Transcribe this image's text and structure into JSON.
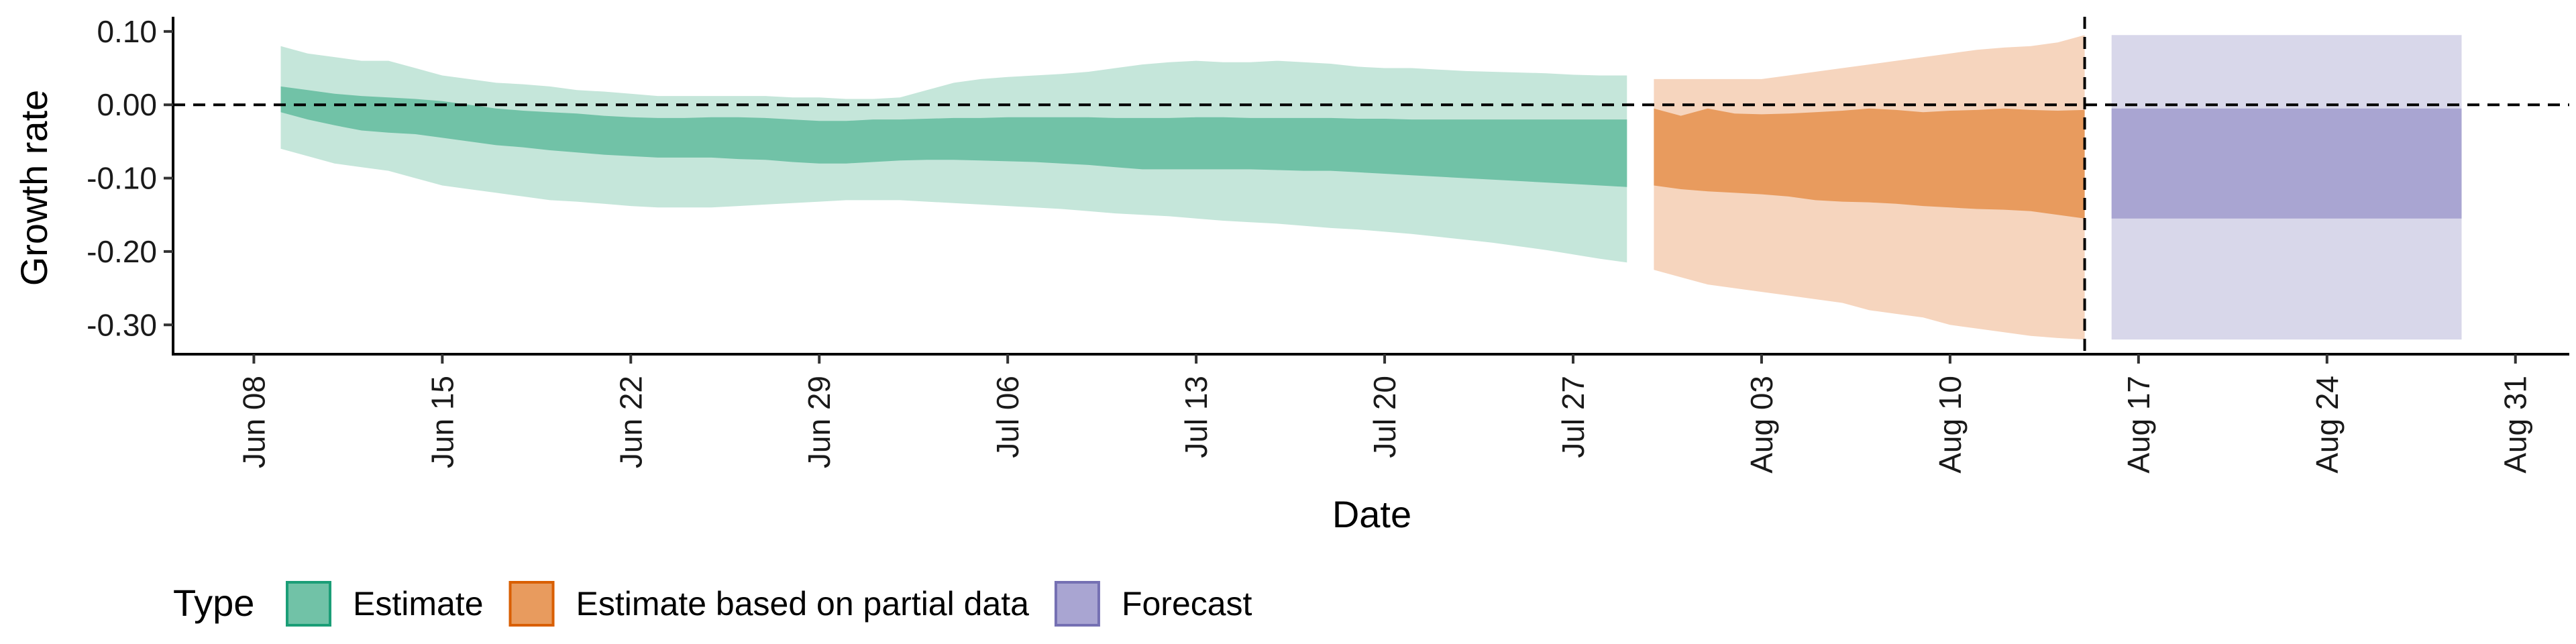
{
  "chart_data": {
    "type": "area",
    "title": "",
    "xlabel": "Date",
    "ylabel": "Growth rate",
    "x_ticks": [
      "Jun 08",
      "Jun 15",
      "Jun 22",
      "Jun 29",
      "Jul 06",
      "Jul 13",
      "Jul 20",
      "Jul 27",
      "Aug 03",
      "Aug 10",
      "Aug 17",
      "Aug 24",
      "Aug 31"
    ],
    "y_ticks": [
      "0.10",
      "0.00",
      "-0.10",
      "-0.20",
      "-0.30"
    ],
    "y_tick_values": [
      0.1,
      0.0,
      -0.1,
      -0.2,
      -0.3
    ],
    "xlim": [
      "2020-06-05",
      "2020-09-02"
    ],
    "ylim": [
      -0.34,
      0.12
    ],
    "grid": false,
    "reference_lines": {
      "horizontal_y": 0.0,
      "vertical_date": "2020-08-15"
    },
    "legend": {
      "title": "Type",
      "position": "bottom-left",
      "items": [
        {
          "label": "Estimate",
          "fill": "#71c2a7",
          "border": "#1b9e77"
        },
        {
          "label": "Estimate based on partial data",
          "fill": "#e89b5e",
          "border": "#d95f02"
        },
        {
          "label": "Forecast",
          "fill": "#a9a5d2",
          "border": "#7570b3"
        }
      ]
    },
    "series": [
      {
        "name": "Estimate",
        "inner_color": "#71c2a7",
        "outer_color": "#c5e6da",
        "dates": [
          "2020-06-09",
          "2020-06-10",
          "2020-06-11",
          "2020-06-12",
          "2020-06-13",
          "2020-06-14",
          "2020-06-15",
          "2020-06-16",
          "2020-06-17",
          "2020-06-18",
          "2020-06-19",
          "2020-06-20",
          "2020-06-21",
          "2020-06-22",
          "2020-06-23",
          "2020-06-24",
          "2020-06-25",
          "2020-06-26",
          "2020-06-27",
          "2020-06-28",
          "2020-06-29",
          "2020-06-30",
          "2020-07-01",
          "2020-07-02",
          "2020-07-03",
          "2020-07-04",
          "2020-07-05",
          "2020-07-06",
          "2020-07-07",
          "2020-07-08",
          "2020-07-09",
          "2020-07-10",
          "2020-07-11",
          "2020-07-12",
          "2020-07-13",
          "2020-07-14",
          "2020-07-15",
          "2020-07-16",
          "2020-07-17",
          "2020-07-18",
          "2020-07-19",
          "2020-07-20",
          "2020-07-21",
          "2020-07-22",
          "2020-07-23",
          "2020-07-24",
          "2020-07-25",
          "2020-07-26",
          "2020-07-27",
          "2020-07-28",
          "2020-07-29"
        ],
        "upper90": [
          0.08,
          0.07,
          0.065,
          0.06,
          0.06,
          0.05,
          0.04,
          0.035,
          0.03,
          0.028,
          0.025,
          0.02,
          0.018,
          0.015,
          0.012,
          0.012,
          0.012,
          0.012,
          0.012,
          0.01,
          0.01,
          0.008,
          0.008,
          0.01,
          0.02,
          0.03,
          0.035,
          0.038,
          0.04,
          0.042,
          0.045,
          0.05,
          0.055,
          0.058,
          0.06,
          0.058,
          0.058,
          0.06,
          0.058,
          0.056,
          0.052,
          0.05,
          0.05,
          0.048,
          0.046,
          0.045,
          0.044,
          0.043,
          0.041,
          0.04,
          0.04
        ],
        "upper50": [
          0.025,
          0.02,
          0.015,
          0.012,
          0.01,
          0.008,
          0.005,
          0.0,
          -0.005,
          -0.008,
          -0.01,
          -0.012,
          -0.015,
          -0.017,
          -0.018,
          -0.018,
          -0.017,
          -0.017,
          -0.018,
          -0.02,
          -0.022,
          -0.022,
          -0.02,
          -0.02,
          -0.019,
          -0.018,
          -0.018,
          -0.017,
          -0.017,
          -0.017,
          -0.017,
          -0.018,
          -0.018,
          -0.018,
          -0.017,
          -0.017,
          -0.018,
          -0.018,
          -0.018,
          -0.018,
          -0.019,
          -0.019,
          -0.02,
          -0.02,
          -0.02,
          -0.02,
          -0.02,
          -0.02,
          -0.02,
          -0.02,
          -0.02
        ],
        "lower50": [
          -0.01,
          -0.02,
          -0.028,
          -0.035,
          -0.038,
          -0.04,
          -0.045,
          -0.05,
          -0.055,
          -0.058,
          -0.062,
          -0.065,
          -0.068,
          -0.07,
          -0.072,
          -0.072,
          -0.072,
          -0.074,
          -0.075,
          -0.078,
          -0.08,
          -0.08,
          -0.078,
          -0.076,
          -0.075,
          -0.075,
          -0.076,
          -0.077,
          -0.078,
          -0.08,
          -0.082,
          -0.085,
          -0.088,
          -0.088,
          -0.088,
          -0.088,
          -0.088,
          -0.089,
          -0.09,
          -0.09,
          -0.092,
          -0.094,
          -0.096,
          -0.098,
          -0.1,
          -0.102,
          -0.104,
          -0.106,
          -0.108,
          -0.11,
          -0.112
        ],
        "lower90": [
          -0.06,
          -0.07,
          -0.08,
          -0.085,
          -0.09,
          -0.1,
          -0.11,
          -0.115,
          -0.12,
          -0.125,
          -0.13,
          -0.132,
          -0.135,
          -0.138,
          -0.14,
          -0.14,
          -0.14,
          -0.138,
          -0.136,
          -0.134,
          -0.132,
          -0.13,
          -0.13,
          -0.13,
          -0.132,
          -0.134,
          -0.136,
          -0.138,
          -0.14,
          -0.142,
          -0.145,
          -0.148,
          -0.15,
          -0.152,
          -0.155,
          -0.158,
          -0.16,
          -0.162,
          -0.165,
          -0.168,
          -0.17,
          -0.173,
          -0.176,
          -0.18,
          -0.184,
          -0.188,
          -0.193,
          -0.198,
          -0.204,
          -0.21,
          -0.215
        ]
      },
      {
        "name": "Estimate based on partial data",
        "inner_color": "#e89b5e",
        "outer_color": "#f6d5be",
        "dates": [
          "2020-07-30",
          "2020-07-31",
          "2020-08-01",
          "2020-08-02",
          "2020-08-03",
          "2020-08-04",
          "2020-08-05",
          "2020-08-06",
          "2020-08-07",
          "2020-08-08",
          "2020-08-09",
          "2020-08-10",
          "2020-08-11",
          "2020-08-12",
          "2020-08-13",
          "2020-08-14",
          "2020-08-15"
        ],
        "upper90": [
          0.035,
          0.035,
          0.035,
          0.035,
          0.035,
          0.04,
          0.045,
          0.05,
          0.055,
          0.06,
          0.065,
          0.07,
          0.075,
          0.078,
          0.08,
          0.085,
          0.095
        ],
        "upper50": [
          -0.005,
          -0.015,
          -0.005,
          -0.012,
          -0.013,
          -0.012,
          -0.01,
          -0.008,
          -0.005,
          -0.007,
          -0.01,
          -0.008,
          -0.007,
          -0.005,
          -0.007,
          -0.008,
          -0.007
        ],
        "lower50": [
          -0.11,
          -0.115,
          -0.118,
          -0.12,
          -0.122,
          -0.125,
          -0.13,
          -0.132,
          -0.133,
          -0.135,
          -0.138,
          -0.14,
          -0.142,
          -0.143,
          -0.145,
          -0.15,
          -0.155
        ],
        "lower90": [
          -0.225,
          -0.235,
          -0.245,
          -0.25,
          -0.255,
          -0.26,
          -0.265,
          -0.27,
          -0.28,
          -0.285,
          -0.29,
          -0.3,
          -0.305,
          -0.31,
          -0.315,
          -0.318,
          -0.32
        ]
      },
      {
        "name": "Forecast",
        "inner_color": "#a9a5d2",
        "outer_color": "#d8d7ea",
        "dates": [
          "2020-08-16",
          "2020-08-29"
        ],
        "upper90": [
          0.095,
          0.095
        ],
        "upper50": [
          -0.005,
          -0.005
        ],
        "lower50": [
          -0.155,
          -0.155
        ],
        "lower90": [
          -0.32,
          -0.32
        ]
      }
    ]
  }
}
